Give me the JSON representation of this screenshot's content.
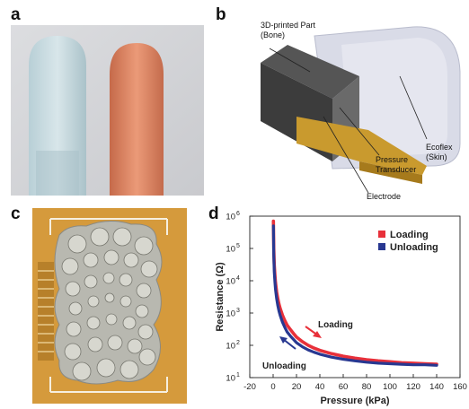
{
  "panels": {
    "a": {
      "label": "a"
    },
    "b": {
      "label": "b",
      "annotations": {
        "part_line1": "3D-printed Part",
        "part_line2": "(Bone)",
        "pressure_line1": "Pressure",
        "pressure_line2": "Transducer",
        "electrode": "Electrode",
        "ecoflex_line1": "Ecoflex",
        "ecoflex_line2": "(Skin)"
      }
    },
    "c": {
      "label": "c"
    },
    "d": {
      "label": "d"
    }
  },
  "chart_data": {
    "type": "line",
    "xlabel": "Pressure (kPa)",
    "ylabel": "Resistance (Ω)",
    "xlim": [
      -20,
      160
    ],
    "x_ticks": [
      -20,
      0,
      20,
      40,
      60,
      80,
      100,
      120,
      140,
      160
    ],
    "ylim": [
      10,
      1000000
    ],
    "y_scale": "log",
    "y_ticks": [
      {
        "value": 10,
        "base": "10",
        "exp": "1"
      },
      {
        "value": 100,
        "base": "10",
        "exp": "2"
      },
      {
        "value": 1000,
        "base": "10",
        "exp": "3"
      },
      {
        "value": 10000,
        "base": "10",
        "exp": "4"
      },
      {
        "value": 100000,
        "base": "10",
        "exp": "5"
      },
      {
        "value": 1000000,
        "base": "10",
        "exp": "6"
      }
    ],
    "legend_position": "top-right",
    "series": [
      {
        "name": "Loading",
        "color": "#e8303a",
        "x": [
          0.2,
          0.5,
          1,
          1.5,
          2,
          3,
          4,
          5,
          6,
          8,
          10,
          12,
          15,
          18,
          20,
          25,
          30,
          35,
          40,
          50,
          60,
          70,
          80,
          90,
          100,
          110,
          120,
          130,
          140
        ],
        "y": [
          700000,
          100000,
          30000,
          15000,
          9000,
          4500,
          2800,
          1900,
          1400,
          850,
          580,
          420,
          300,
          220,
          180,
          130,
          100,
          82,
          70,
          55,
          46,
          40,
          36,
          33,
          31,
          29,
          28,
          27,
          26
        ]
      },
      {
        "name": "Unloading",
        "color": "#283891",
        "x": [
          0.2,
          0.5,
          1,
          1.5,
          2,
          3,
          4,
          5,
          6,
          8,
          10,
          12,
          15,
          18,
          20,
          25,
          30,
          35,
          40,
          50,
          60,
          70,
          80,
          90,
          100,
          110,
          120,
          130,
          140
        ],
        "y": [
          500000,
          60000,
          18000,
          9000,
          5500,
          2800,
          1700,
          1150,
          850,
          520,
          360,
          260,
          190,
          145,
          120,
          90,
          72,
          61,
          53,
          43,
          37,
          33,
          30,
          28,
          27,
          26,
          25,
          25,
          24
        ]
      }
    ],
    "annotations": [
      {
        "text": "Loading",
        "color": "#e8303a"
      },
      {
        "text": "Unloading",
        "color": "#283891"
      }
    ]
  }
}
